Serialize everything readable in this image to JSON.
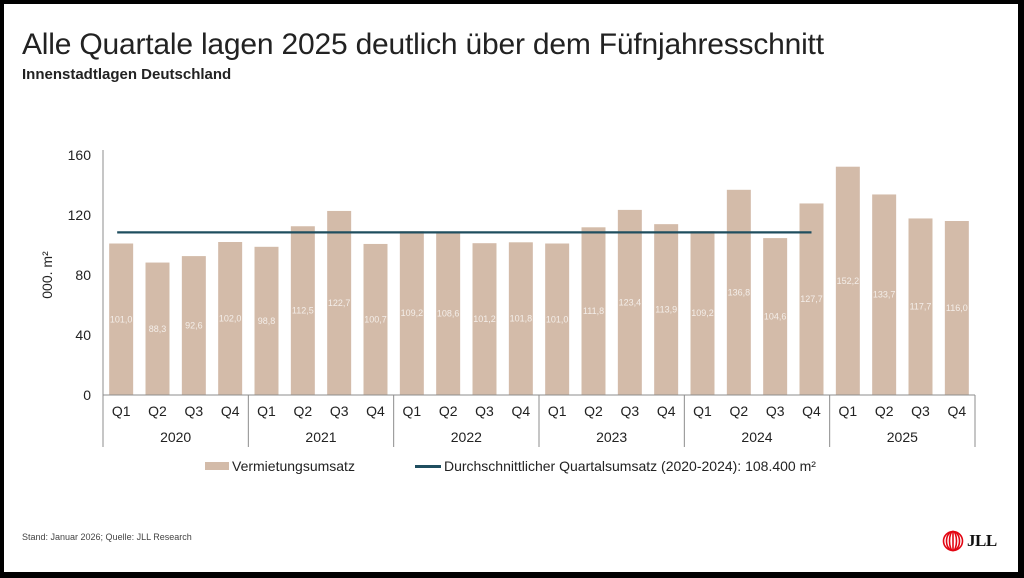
{
  "header": {
    "title": "Alle Quartale lagen 2025 deutlich über dem Füfnjahresschnitt",
    "subtitle": "Innenstadtlagen Deutschland"
  },
  "colors": {
    "bar": "#d3bba9",
    "average_line": "#1f4e5f",
    "data_label": "#f4eee9",
    "axis": "#8c8c8c",
    "text": "#222222",
    "logo_red": "#e30613"
  },
  "chart_data": {
    "type": "bar",
    "title": "Alle Quartale lagen 2025 deutlich über dem Füfnjahresschnitt",
    "subtitle": "Innenstadtlagen Deutschland",
    "xlabel": "",
    "ylabel": "000. m²",
    "ylim": [
      0,
      160
    ],
    "yticks": [
      0,
      40,
      80,
      120,
      160
    ],
    "grid": false,
    "legend_position": "bottom",
    "years": [
      "2020",
      "2021",
      "2022",
      "2023",
      "2024",
      "2025"
    ],
    "quarters": [
      "Q1",
      "Q2",
      "Q3",
      "Q4"
    ],
    "categories": [
      "2020 Q1",
      "2020 Q2",
      "2020 Q3",
      "2020 Q4",
      "2021 Q1",
      "2021 Q2",
      "2021 Q3",
      "2021 Q4",
      "2022 Q1",
      "2022 Q2",
      "2022 Q3",
      "2022 Q4",
      "2023 Q1",
      "2023 Q2",
      "2023 Q3",
      "2023 Q4",
      "2024 Q1",
      "2024 Q2",
      "2024 Q3",
      "2024 Q4",
      "2025 Q1",
      "2025 Q2",
      "2025 Q3",
      "2025 Q4"
    ],
    "series": [
      {
        "name": "Vermietungsumsatz",
        "type": "bar",
        "values": [
          101.0,
          88.3,
          92.6,
          102.0,
          98.8,
          112.5,
          122.7,
          100.7,
          109.2,
          108.6,
          101.2,
          101.8,
          101.0,
          111.8,
          123.4,
          113.9,
          109.2,
          136.8,
          104.6,
          127.7,
          152.2,
          133.7,
          117.7,
          116.0
        ],
        "labels": [
          "101,0",
          "88,3",
          "92,6",
          "102,0",
          "98,8",
          "112,5",
          "122,7",
          "100,7",
          "109,2",
          "108,6",
          "101,2",
          "101,8",
          "101,0",
          "111,8",
          "123,4",
          "113,9",
          "109,2",
          "136,8",
          "104,6",
          "127,7",
          "152,2",
          "133,7",
          "117,7",
          "116,0"
        ]
      },
      {
        "name": "Durchschnittlicher Quartalsumsatz (2020-2024): 108.400 m²",
        "type": "line",
        "value": 108.4,
        "span": [
          "2020 Q1",
          "2024 Q4"
        ]
      }
    ]
  },
  "legend": {
    "bar_label": "Vermietungsumsatz",
    "line_label": "Durchschnittlicher Quartalsumsatz (2020-2024): 108.400 m²"
  },
  "footer": {
    "source": "Stand: Januar 2026; Quelle: JLL Research"
  },
  "logo": {
    "text": "JLL"
  }
}
